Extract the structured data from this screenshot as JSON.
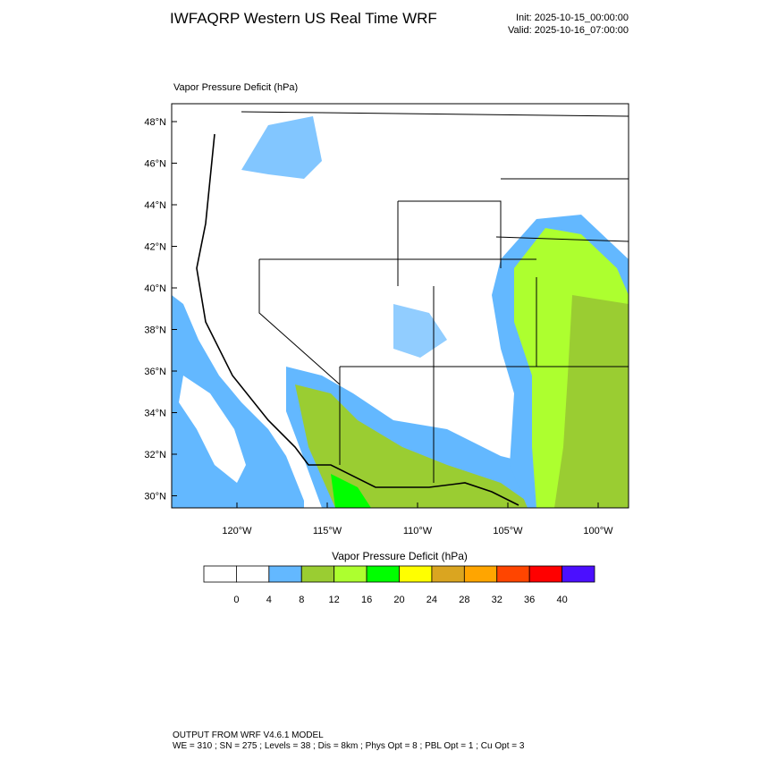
{
  "header": {
    "title": "IWFAQRP Western US Real Time WRF",
    "init": "Init: 2025-10-15_00:00:00",
    "valid": "Valid: 2025-10-16_07:00:00"
  },
  "map": {
    "label": "Vapor Pressure Deficit   (hPa)",
    "lat_labels": [
      "48°N",
      "46°N",
      "44°N",
      "42°N",
      "40°N",
      "38°N",
      "36°N",
      "34°N",
      "32°N",
      "30°N"
    ],
    "lon_labels": [
      "120°W",
      "115°W",
      "110°W",
      "105°W",
      "100°W"
    ]
  },
  "colorbar": {
    "title": "Vapor Pressure Deficit  (hPa)",
    "colors": [
      "#ffffff",
      "#ffffff",
      "#63b8ff",
      "#9acd32",
      "#adff2f",
      "#00ff00",
      "#ffff00",
      "#daa520",
      "#ffa500",
      "#ff4500",
      "#ff0000",
      "#4b0fff"
    ],
    "ticks": [
      0,
      4,
      8,
      12,
      16,
      20,
      24,
      28,
      32,
      36,
      40
    ]
  },
  "footer": {
    "line1": "OUTPUT FROM WRF V4.6.1 MODEL",
    "line2": "WE = 310 ; SN = 275 ; Levels = 38 ; Dis = 8km ; Phys Opt = 8 ; PBL Opt = 1 ; Cu Opt = 3"
  }
}
